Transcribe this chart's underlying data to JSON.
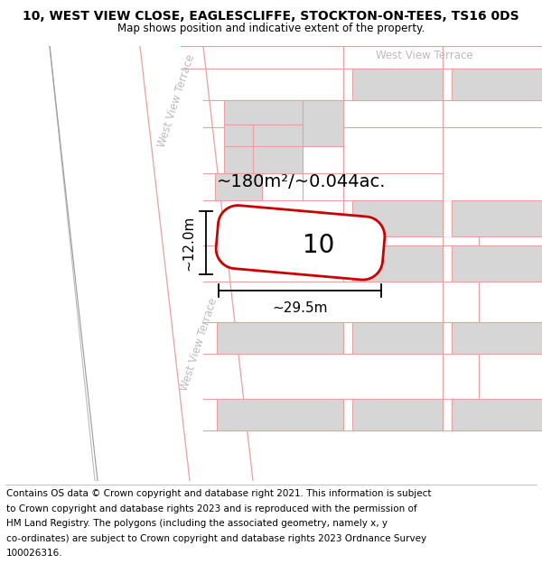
{
  "title": "10, WEST VIEW CLOSE, EAGLESCLIFFE, STOCKTON-ON-TEES, TS16 0DS",
  "subtitle": "Map shows position and indicative extent of the property.",
  "footer_lines": [
    "Contains OS data © Crown copyright and database right 2021. This information is subject",
    "to Crown copyright and database rights 2023 and is reproduced with the permission of",
    "HM Land Registry. The polygons (including the associated geometry, namely x, y",
    "co-ordinates) are subject to Crown copyright and database rights 2023 Ordnance Survey",
    "100026316."
  ],
  "area_label": "~180m²/~0.044ac.",
  "plot_number": "10",
  "dim_width": "~29.5m",
  "dim_height": "~12.0m",
  "street_label_diag1": "West View Terrace",
  "street_label_diag2": "West View Terrace",
  "street_label_top": "West View Terrace",
  "bld_fill": "#d6d6d6",
  "bld_ec": "#e8a0a0",
  "road_ec": "#e8a0a0",
  "plot_ec": "#cc0000",
  "plot_fill": "#ffffff",
  "map_bg": "#ffffff",
  "title_fontsize": 10,
  "subtitle_fontsize": 8.5,
  "footer_fontsize": 7.5,
  "label_color": "#bbbbbb",
  "dim_color": "#000000"
}
